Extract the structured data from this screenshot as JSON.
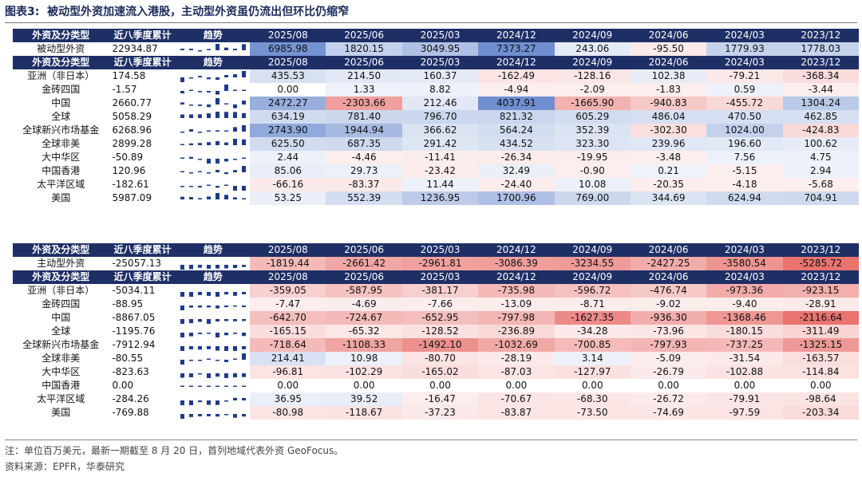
{
  "title": {
    "label": "图表3:",
    "text": "被动型外资加速流入港股，主动型外资虽仍流出但环比仍缩窄"
  },
  "colors": {
    "header": "#1e2f66",
    "neg": "#e8736f",
    "pos": "#6f8fd0"
  },
  "tables": [
    {
      "columns": [
        "2025/08",
        "2025/06",
        "2025/03",
        "2024/12",
        "2024/09",
        "2024/06",
        "2024/03",
        "2023/12"
      ],
      "header_labels": {
        "category": "外资及分类型",
        "cumulative": "近八季度累计",
        "trend": "趋势"
      },
      "summary": {
        "name": "被动型外资",
        "cumulative": "22934.87",
        "values": [
          "6985.98",
          "1820.15",
          "3049.95",
          "7373.27",
          "243.06",
          "-95.50",
          "1779.93",
          "1778.03"
        ]
      },
      "rows": [
        {
          "name": "亚洲（非日本）",
          "cumulative": "174.58",
          "values": [
            "435.53",
            "214.50",
            "160.37",
            "-162.49",
            "-128.16",
            "102.38",
            "-79.21",
            "-368.34"
          ]
        },
        {
          "name": "金砖四国",
          "cumulative": "-1.57",
          "values": [
            "0.00",
            "1.33",
            "8.82",
            "-4.94",
            "-2.09",
            "-1.83",
            "0.59",
            "-3.44"
          ]
        },
        {
          "name": "中国",
          "cumulative": "2660.77",
          "values": [
            "2472.27",
            "-2303.66",
            "212.46",
            "4037.91",
            "-1665.90",
            "-940.83",
            "-455.72",
            "1304.24"
          ]
        },
        {
          "name": "全球",
          "cumulative": "5058.29",
          "values": [
            "634.19",
            "781.40",
            "796.70",
            "821.32",
            "605.29",
            "486.04",
            "470.50",
            "462.85"
          ]
        },
        {
          "name": "全球新兴市场基金",
          "cumulative": "6268.96",
          "values": [
            "2743.90",
            "1944.94",
            "366.62",
            "564.24",
            "352.39",
            "-302.30",
            "1024.00",
            "-424.83"
          ]
        },
        {
          "name": "全球非美",
          "cumulative": "2899.28",
          "values": [
            "625.50",
            "687.35",
            "291.42",
            "434.52",
            "323.30",
            "239.96",
            "196.60",
            "100.62"
          ]
        },
        {
          "name": "大中华区",
          "cumulative": "-50.89",
          "values": [
            "2.44",
            "-4.46",
            "-11.41",
            "-26.34",
            "-19.95",
            "-3.48",
            "7.56",
            "4.75"
          ]
        },
        {
          "name": "中国香港",
          "cumulative": "120.96",
          "values": [
            "85.06",
            "29.73",
            "-23.42",
            "32.49",
            "-0.90",
            "0.21",
            "-5.15",
            "2.94"
          ]
        },
        {
          "name": "太平洋区域",
          "cumulative": "-182.61",
          "values": [
            "-66.16",
            "-83.37",
            "11.44",
            "-24.40",
            "10.08",
            "-20.35",
            "-4.18",
            "-5.68"
          ]
        },
        {
          "name": "美国",
          "cumulative": "5987.09",
          "values": [
            "53.25",
            "552.39",
            "1236.95",
            "1700.96",
            "769.00",
            "344.69",
            "624.94",
            "704.91"
          ]
        }
      ]
    },
    {
      "columns": [
        "2025/08",
        "2025/06",
        "2025/03",
        "2024/12",
        "2024/09",
        "2024/06",
        "2024/03",
        "2023/12"
      ],
      "header_labels": {
        "category": "外资及分类型",
        "cumulative": "近八季度累计",
        "trend": "趋势"
      },
      "summary": {
        "name": "主动型外资",
        "cumulative": "-25057.13",
        "values": [
          "-1819.44",
          "-2661.42",
          "-2961.81",
          "-3086.39",
          "-3234.55",
          "-2427.25",
          "-3580.54",
          "-5285.72"
        ]
      },
      "rows": [
        {
          "name": "亚洲（非日本）",
          "cumulative": "-5034.11",
          "values": [
            "-359.05",
            "-587.95",
            "-381.17",
            "-735.98",
            "-596.72",
            "-476.74",
            "-973.36",
            "-923.15"
          ]
        },
        {
          "name": "金砖四国",
          "cumulative": "-88.95",
          "values": [
            "-7.47",
            "-4.69",
            "-7.66",
            "-13.09",
            "-8.71",
            "-9.02",
            "-9.40",
            "-28.91"
          ]
        },
        {
          "name": "中国",
          "cumulative": "-8867.05",
          "values": [
            "-642.70",
            "-724.67",
            "-652.95",
            "-797.98",
            "-1627.35",
            "-936.30",
            "-1368.46",
            "-2116.64"
          ]
        },
        {
          "name": "全球",
          "cumulative": "-1195.76",
          "values": [
            "-165.15",
            "-65.32",
            "-128.52",
            "-236.89",
            "-34.28",
            "-73.96",
            "-180.15",
            "-311.49"
          ]
        },
        {
          "name": "全球新兴市场基金",
          "cumulative": "-7912.94",
          "values": [
            "-718.64",
            "-1108.33",
            "-1492.10",
            "-1032.69",
            "-700.85",
            "-797.93",
            "-737.25",
            "-1325.15"
          ]
        },
        {
          "name": "全球非美",
          "cumulative": "-80.55",
          "values": [
            "214.41",
            "10.98",
            "-80.70",
            "-28.19",
            "3.14",
            "-5.09",
            "-31.54",
            "-163.57"
          ]
        },
        {
          "name": "大中华区",
          "cumulative": "-823.63",
          "values": [
            "-96.81",
            "-102.29",
            "-165.02",
            "-87.03",
            "-127.97",
            "-26.79",
            "-102.88",
            "-114.84"
          ]
        },
        {
          "name": "中国香港",
          "cumulative": "0.00",
          "values": [
            "0.00",
            "0.00",
            "0.00",
            "0.00",
            "0.00",
            "0.00",
            "0.00",
            "0.00"
          ]
        },
        {
          "name": "太平洋区域",
          "cumulative": "-284.26",
          "values": [
            "36.95",
            "39.52",
            "-16.47",
            "-70.67",
            "-68.30",
            "-26.72",
            "-79.91",
            "-98.64"
          ]
        },
        {
          "name": "美国",
          "cumulative": "-769.88",
          "values": [
            "-80.98",
            "-118.67",
            "-37.23",
            "-83.87",
            "-73.50",
            "-74.69",
            "-97.59",
            "-203.34"
          ]
        }
      ]
    }
  ],
  "notes": {
    "unit": "注：单位百万美元，最新一期截至 8 月 20 日，首列地域代表外资 GeoFocus。",
    "source": "资料来源：EPFR，华泰研究"
  }
}
